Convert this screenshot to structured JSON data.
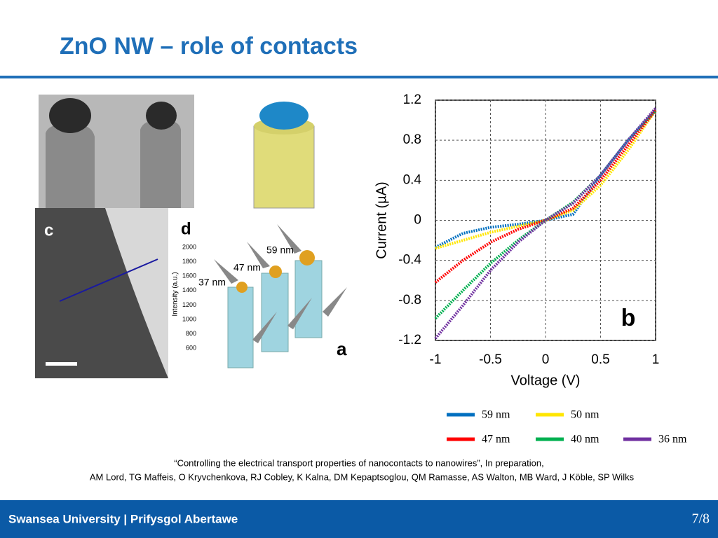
{
  "header": {
    "title": "ZnO NW – role of contacts"
  },
  "figure": {
    "panel_labels": [
      "c",
      "d",
      "a"
    ],
    "wire_labels": [
      "59 nm",
      "47 nm",
      "37 nm"
    ],
    "inset": {
      "ylabel": "Intensity (a.u.)",
      "yticks": [
        "2000",
        "1800",
        "1600",
        "1400",
        "1200",
        "1000",
        "800",
        "600"
      ]
    }
  },
  "chart_data": {
    "type": "line",
    "xlabel": "Voltage (V)",
    "ylabel": "Current (µA)",
    "annotation": "b",
    "x": [
      -1,
      -0.75,
      -0.5,
      -0.25,
      0,
      0.25,
      0.5,
      0.75,
      1
    ],
    "series": [
      {
        "name": "59 nm",
        "color": "#0070c0",
        "values": [
          -0.27,
          -0.13,
          -0.07,
          -0.04,
          0,
          0.06,
          0.45,
          0.8,
          1.1
        ]
      },
      {
        "name": "50 nm",
        "color": "#ffe600",
        "values": [
          -0.28,
          -0.2,
          -0.12,
          -0.06,
          0,
          0.1,
          0.35,
          0.7,
          1.1
        ]
      },
      {
        "name": "47 nm",
        "color": "#ff0000",
        "values": [
          -0.62,
          -0.4,
          -0.22,
          -0.09,
          0,
          0.12,
          0.4,
          0.75,
          1.1
        ]
      },
      {
        "name": "40 nm",
        "color": "#00b050",
        "values": [
          -0.98,
          -0.7,
          -0.43,
          -0.2,
          0,
          0.18,
          0.45,
          0.8,
          1.1
        ]
      },
      {
        "name": "36 nm",
        "color": "#7030a0",
        "values": [
          -1.18,
          -0.85,
          -0.5,
          -0.22,
          0,
          0.17,
          0.45,
          0.8,
          1.12
        ]
      }
    ],
    "xlim": [
      -1,
      1
    ],
    "ylim": [
      -1.2,
      1.2
    ],
    "xticks": [
      -1,
      -0.5,
      0,
      0.5,
      1
    ],
    "yticks": [
      -1.2,
      -0.8,
      -0.4,
      0,
      0.4,
      0.8,
      1.2
    ],
    "grid": true
  },
  "citation": [
    "“Controlling the electrical transport properties of nanocontacts to nanowires”, In preparation,",
    "AM Lord, TG Maffeis, O Kryvchenkova, RJ Cobley, K Kalna, DM Kepaptsoglou, QM Ramasse, AS Walton, MB Ward, J Köble, SP Wilks"
  ],
  "footer": {
    "institution": "Swansea University | Prifysgol Abertawe",
    "page": "7/8"
  }
}
